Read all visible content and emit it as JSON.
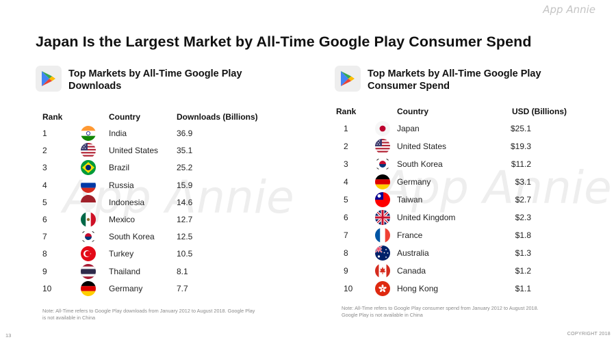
{
  "brand": "App Annie",
  "page_title": "Japan Is the Largest Market by All-Time Google Play Consumer Spend",
  "page_number": "13",
  "copyright": "COPYRIGHT 2018",
  "colors": {
    "tile_bg": "#eeeeee",
    "play_green": "#34a853",
    "play_blue": "#4285f4",
    "play_yellow": "#fbbc05",
    "play_red": "#ea4335"
  },
  "downloads": {
    "icon": "google-play-icon",
    "title": "Top Markets by All-Time Google Play Downloads",
    "headers": {
      "rank": "Rank",
      "country": "Country",
      "value": "Downloads (Billions)"
    },
    "rows": [
      {
        "rank": "1",
        "flag": "in",
        "country": "India",
        "value": "36.9"
      },
      {
        "rank": "2",
        "flag": "us",
        "country": "United States",
        "value": "35.1"
      },
      {
        "rank": "3",
        "flag": "br",
        "country": "Brazil",
        "value": "25.2"
      },
      {
        "rank": "4",
        "flag": "ru",
        "country": "Russia",
        "value": "15.9"
      },
      {
        "rank": "5",
        "flag": "id",
        "country": "Indonesia",
        "value": "14.6"
      },
      {
        "rank": "6",
        "flag": "mx",
        "country": "Mexico",
        "value": "12.7"
      },
      {
        "rank": "7",
        "flag": "kr",
        "country": "South Korea",
        "value": "12.5"
      },
      {
        "rank": "8",
        "flag": "tr",
        "country": "Turkey",
        "value": "10.5"
      },
      {
        "rank": "9",
        "flag": "th",
        "country": "Thailand",
        "value": "8.1"
      },
      {
        "rank": "10",
        "flag": "de",
        "country": "Germany",
        "value": "7.7"
      }
    ],
    "note": "Note: All-Time refers to Google Play downloads from January  2012 to August 2018. Google Play is not available in China"
  },
  "spend": {
    "icon": "google-play-icon",
    "title": "Top Markets by All-Time Google Play Consumer Spend",
    "headers": {
      "rank": "Rank",
      "country": "Country",
      "value": "USD (Billions)"
    },
    "rows": [
      {
        "rank": "1",
        "flag": "jp",
        "country": "Japan",
        "value": "$25.1"
      },
      {
        "rank": "2",
        "flag": "us",
        "country": "United States",
        "value": "$19.3"
      },
      {
        "rank": "3",
        "flag": "kr",
        "country": "South Korea",
        "value": "$11.2"
      },
      {
        "rank": "4",
        "flag": "de",
        "country": "Germany",
        "value": "$3.1"
      },
      {
        "rank": "5",
        "flag": "tw",
        "country": "Taiwan",
        "value": "$2.7"
      },
      {
        "rank": "6",
        "flag": "gb",
        "country": "United Kingdom",
        "value": "$2.3"
      },
      {
        "rank": "7",
        "flag": "fr",
        "country": "France",
        "value": "$1.8"
      },
      {
        "rank": "8",
        "flag": "au",
        "country": "Australia",
        "value": "$1.3"
      },
      {
        "rank": "9",
        "flag": "ca",
        "country": "Canada",
        "value": "$1.2"
      },
      {
        "rank": "10",
        "flag": "hk",
        "country": "Hong Kong",
        "value": "$1.1"
      }
    ],
    "note": "Note: All-Time refers to Google Play consumer spend from January 2012 to August 2018. Google Play is not available in China"
  }
}
